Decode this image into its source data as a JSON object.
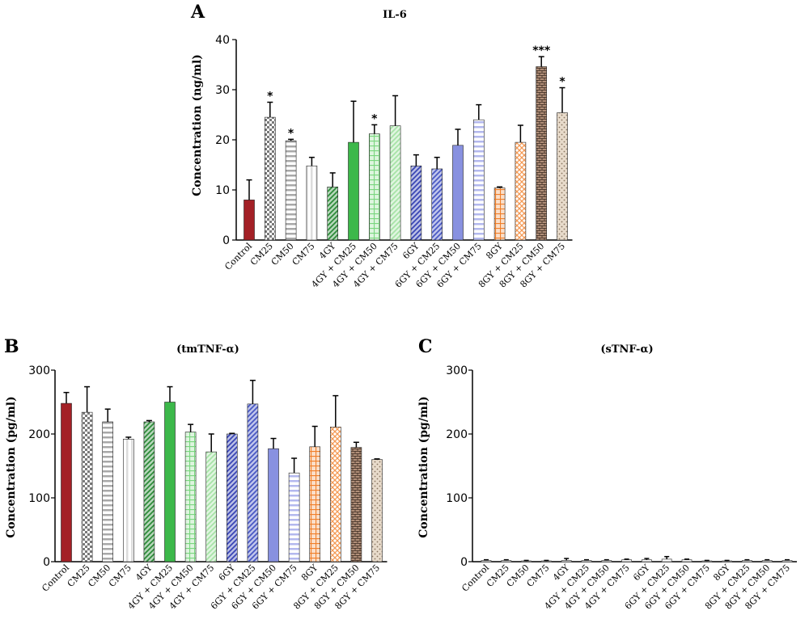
{
  "patterns": {
    "solid": "solid",
    "check": "checkerboard",
    "hstripe": "horizontal-stripes",
    "vstripe": "vertical-stripes",
    "dstripe": "diagonal-stripes",
    "grid": "grid",
    "cross": "crosshatch",
    "brick": "brick",
    "dots": "dots"
  },
  "chart_data": [
    {
      "panel": "A",
      "type": "bar",
      "title": "IL-6",
      "ylabel": "Concentration (ng/ml)",
      "ylim": [
        0,
        40
      ],
      "yticks": [
        "0",
        "10",
        "20",
        "30",
        "40"
      ],
      "categories": [
        "Control",
        "CM25",
        "CM50",
        "CM75",
        "4GY",
        "4GY + CM25",
        "4GY + CM50",
        "4GY + CM75",
        "6GY",
        "6GY + CM25",
        "6GY + CM50",
        "6GY + CM75",
        "8GY",
        "8GY + CM25",
        "8GY + CM50",
        "8GY + CM75"
      ],
      "values": [
        8,
        24.5,
        19.8,
        14.8,
        10.6,
        19.5,
        21.2,
        22.8,
        14.8,
        14.2,
        18.9,
        24,
        10.4,
        19.5,
        34.6,
        25.4
      ],
      "errors": [
        4,
        3,
        0.3,
        1.7,
        2.8,
        8.2,
        1.8,
        6,
        2.2,
        2.3,
        3.2,
        3,
        0.2,
        3.4,
        2,
        5
      ],
      "significance": [
        "",
        "*",
        "*",
        "",
        "",
        "",
        "*",
        "",
        "",
        "",
        "",
        "",
        "",
        "",
        "***",
        "*"
      ],
      "colors": [
        "#a32026",
        "#7a7a7a",
        "#a8a8a8",
        "#dcdcdc",
        "#2e8b3a",
        "#3cb84a",
        "#7ad67f",
        "#a7e3a7",
        "#3a46b5",
        "#4a59c4",
        "#8891e0",
        "#b3b8ee",
        "#f07f2a",
        "#f59a55",
        "#b08e78",
        "#d9c3a8"
      ],
      "patterns": [
        "solid",
        "check",
        "hstripe",
        "vstripe",
        "dstripe",
        "solid",
        "grid",
        "dstripe",
        "dstripe",
        "dstripe",
        "solid",
        "hstripe",
        "grid",
        "cross",
        "brick",
        "dots"
      ]
    },
    {
      "panel": "B",
      "type": "bar",
      "title": "(tmTNF-α)",
      "ylabel": "Concentration (pg/ml)",
      "ylim": [
        0,
        300
      ],
      "yticks": [
        "0",
        "100",
        "200",
        "300"
      ],
      "categories": [
        "Control",
        "CM25",
        "CM50",
        "CM75",
        "4GY",
        "4GY + CM25",
        "4GY + CM50",
        "4GY + CM75",
        "6GY",
        "6GY + CM25",
        "6GY + CM50",
        "6GY + CM75",
        "8GY",
        "8GY + CM25",
        "8GY + CM50",
        "8GY + CM75"
      ],
      "values": [
        248,
        234,
        219,
        192,
        219,
        250,
        203,
        172,
        200,
        247,
        177,
        139,
        180,
        211,
        179,
        160
      ],
      "errors": [
        17,
        40,
        20,
        3,
        2,
        24,
        12,
        28,
        1,
        37,
        16,
        23,
        32,
        49,
        8,
        1
      ],
      "colors": [
        "#a32026",
        "#7a7a7a",
        "#a8a8a8",
        "#dcdcdc",
        "#2e8b3a",
        "#3cb84a",
        "#7ad67f",
        "#a7e3a7",
        "#3a46b5",
        "#4a59c4",
        "#8891e0",
        "#b3b8ee",
        "#f07f2a",
        "#f59a55",
        "#b08e78",
        "#d9c3a8"
      ],
      "patterns": [
        "solid",
        "check",
        "hstripe",
        "vstripe",
        "dstripe",
        "solid",
        "grid",
        "dstripe",
        "dstripe",
        "dstripe",
        "solid",
        "hstripe",
        "grid",
        "cross",
        "brick",
        "dots"
      ]
    },
    {
      "panel": "C",
      "type": "bar",
      "title": "(sTNF-α)",
      "ylabel": "Concentration (pg/ml)",
      "ylim": [
        0,
        300
      ],
      "yticks": [
        "0",
        "100",
        "200",
        "300"
      ],
      "categories": [
        "Control",
        "CM25",
        "CM50",
        "CM75",
        "4GY",
        "4GY + CM25",
        "4GY + CM50",
        "4GY + CM75",
        "6GY",
        "6GY + CM25",
        "6GY + CM50",
        "6GY + CM75",
        "8GY",
        "8GY + CM25",
        "8GY + CM50",
        "8GY + CM75"
      ],
      "values": [
        2,
        2,
        1,
        1,
        2,
        2,
        2,
        3,
        3,
        4,
        3,
        1,
        1,
        2,
        2,
        2
      ],
      "errors": [
        1,
        1,
        1,
        1,
        3,
        1,
        1,
        1,
        2,
        4,
        1,
        1,
        1,
        1,
        1,
        1
      ],
      "colors": [
        "#a32026",
        "#7a7a7a",
        "#a8a8a8",
        "#dcdcdc",
        "#2e8b3a",
        "#3cb84a",
        "#7ad67f",
        "#a7e3a7",
        "#3a46b5",
        "#4a59c4",
        "#8891e0",
        "#b3b8ee",
        "#f07f2a",
        "#f59a55",
        "#b08e78",
        "#d9c3a8"
      ],
      "patterns": [
        "solid",
        "check",
        "hstripe",
        "vstripe",
        "dstripe",
        "solid",
        "grid",
        "dstripe",
        "dstripe",
        "dstripe",
        "solid",
        "hstripe",
        "grid",
        "cross",
        "brick",
        "dots"
      ],
      "note": "bars nearly flat, outlined only"
    }
  ]
}
